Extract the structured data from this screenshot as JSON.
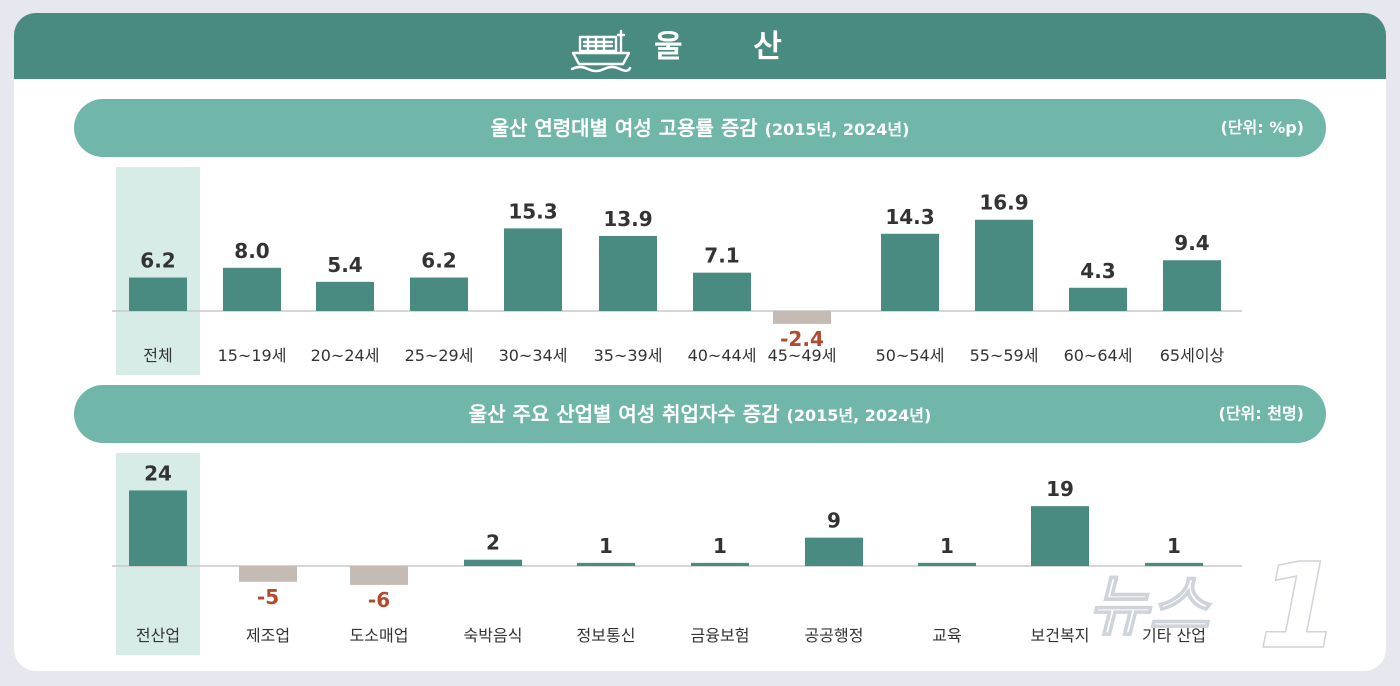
{
  "header": {
    "title": "울 산",
    "icon": "ship-icon"
  },
  "colors": {
    "header_bg": "#4a8b81",
    "pill_bg": "#70b7a9",
    "bar_positive": "#4a8b81",
    "bar_negative": "#c4bbb5",
    "negative_label": "#b24a2e",
    "highlight_bg": "#d8ece7",
    "text": "#333333"
  },
  "chart_data": [
    {
      "type": "bar",
      "title": "울산 연령대별 여성 고용률 증감",
      "subtitle": "(2015년, 2024년)",
      "unit": "(단위: %p)",
      "categories": [
        "전체",
        "15~19세",
        "20~24세",
        "25~29세",
        "30~34세",
        "35~39세",
        "40~44세",
        "45~49세",
        "50~54세",
        "55~59세",
        "60~64세",
        "65세이상"
      ],
      "value_labels": [
        "6.2",
        "8.0",
        "5.4",
        "6.2",
        "15.3",
        "13.9",
        "7.1",
        "-2.4",
        "14.3",
        "16.9",
        "4.3",
        "9.4"
      ],
      "values": [
        6.2,
        8.0,
        5.4,
        6.2,
        15.3,
        13.9,
        7.1,
        -2.4,
        14.3,
        16.9,
        4.3,
        9.4
      ],
      "highlight_index": 0,
      "grid": false,
      "legend": "none"
    },
    {
      "type": "bar",
      "title": "울산 주요 산업별 여성 취업자수 증감",
      "subtitle": "(2015년, 2024년)",
      "unit": "(단위: 천명)",
      "categories": [
        "전산업",
        "제조업",
        "도소매업",
        "숙박음식",
        "정보통신",
        "금융보험",
        "공공행정",
        "교육",
        "보건복지",
        "기타 산업"
      ],
      "value_labels": [
        "24",
        "-5",
        "-6",
        "2",
        "1",
        "1",
        "9",
        "1",
        "19",
        "1"
      ],
      "values": [
        24,
        -5,
        -6,
        2,
        1,
        1,
        9,
        1,
        19,
        1
      ],
      "highlight_index": 0,
      "grid": false,
      "legend": "none"
    }
  ],
  "watermark": {
    "text": "뉴스",
    "number": "1"
  }
}
